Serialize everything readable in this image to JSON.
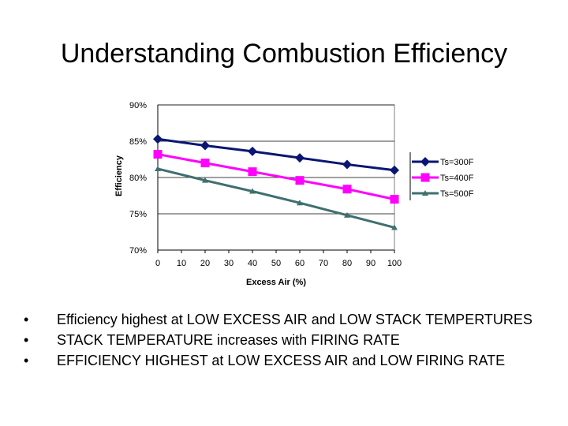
{
  "slide": {
    "title": "Understanding Combustion Efficiency"
  },
  "chart_data": {
    "type": "line",
    "title": "",
    "xlabel": "Excess Air (%)",
    "ylabel": "Efficiency",
    "x_ticks": [
      0,
      10,
      20,
      30,
      40,
      50,
      60,
      70,
      80,
      90,
      100
    ],
    "y_ticks": [
      "70%",
      "75%",
      "80%",
      "85%",
      "90%"
    ],
    "xlim": [
      0,
      100
    ],
    "ylim": [
      70,
      90
    ],
    "grid": "horizontal",
    "legend_position": "right",
    "series": [
      {
        "name": "Ts=300F",
        "color": "#0a1672",
        "marker": "diamond",
        "x": [
          0,
          20,
          40,
          60,
          80,
          100
        ],
        "values": [
          85.3,
          84.4,
          83.6,
          82.7,
          81.8,
          81.0
        ]
      },
      {
        "name": "Ts=400F",
        "color": "#ff00ff",
        "marker": "square",
        "x": [
          0,
          20,
          40,
          60,
          80,
          100
        ],
        "values": [
          83.2,
          82.0,
          80.8,
          79.6,
          78.4,
          77.0
        ]
      },
      {
        "name": "Ts=500F",
        "color": "#3f6f6f",
        "marker": "triangle",
        "x": [
          0,
          20,
          40,
          60,
          80,
          100
        ],
        "values": [
          81.2,
          79.6,
          78.1,
          76.5,
          74.8,
          73.1
        ]
      }
    ]
  },
  "bullets": [
    {
      "marker": "•",
      "text": "Efficiency highest at LOW EXCESS AIR and LOW STACK TEMPERTURES"
    },
    {
      "marker": "•",
      "text": "STACK TEMPERATURE increases with FIRING RATE"
    },
    {
      "marker": "•",
      "text": "EFFICIENCY HIGHEST at LOW EXCESS AIR and LOW FIRING RATE"
    }
  ]
}
